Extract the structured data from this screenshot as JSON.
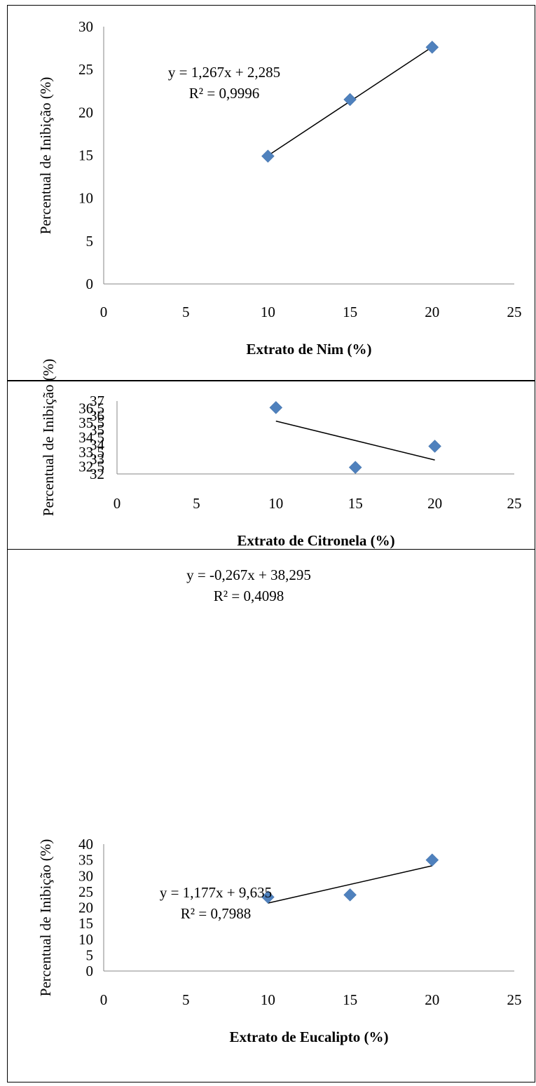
{
  "chart_data": [
    {
      "type": "scatter",
      "xlabel": "Extrato de Nim (%)",
      "ylabel": "Percentual de Inibição (%)",
      "xlim": [
        0,
        25
      ],
      "ylim": [
        0,
        30
      ],
      "xticks": [
        "0",
        "5",
        "10",
        "15",
        "20",
        "25"
      ],
      "yticks": [
        "0",
        "5",
        "10",
        "15",
        "20",
        "25",
        "30"
      ],
      "ytick_values": [
        0,
        5,
        10,
        15,
        20,
        25,
        30
      ],
      "points": [
        {
          "x": 10,
          "y": 14.9
        },
        {
          "x": 15,
          "y": 21.5
        },
        {
          "x": 20,
          "y": 27.6
        }
      ],
      "trendline": {
        "slope": 1.267,
        "intercept": 2.285,
        "x_range": [
          10,
          20
        ]
      },
      "equation": "y = 1,267x + 2,285",
      "r_squared": "R² = 0,9996",
      "marker_color": "#4f81bd",
      "grid": false,
      "legend": "none"
    },
    {
      "type": "scatter",
      "xlabel": "Extrato de Citronela (%)",
      "ylabel": "Percentual de Inibição (%)",
      "xlim": [
        0,
        25
      ],
      "ylim": [
        32,
        37
      ],
      "xticks": [
        "0",
        "5",
        "10",
        "15",
        "20",
        "25"
      ],
      "yticks": [
        "32",
        "32,5",
        "33",
        "33,5",
        "34",
        "34,5",
        "35",
        "35,5",
        "36",
        "36,5",
        "37"
      ],
      "ytick_values": [
        32,
        32.5,
        33,
        33.5,
        34,
        34.5,
        35,
        35.5,
        36,
        36.5,
        37
      ],
      "points": [
        {
          "x": 10,
          "y": 36.55
        },
        {
          "x": 15,
          "y": 32.45
        },
        {
          "x": 20,
          "y": 33.9
        }
      ],
      "trendline": {
        "slope": -0.267,
        "intercept": 38.295,
        "x_range": [
          10,
          20
        ]
      },
      "equation": "y = -0,267x + 38,295",
      "r_squared": "R² = 0,4098",
      "marker_color": "#4f81bd",
      "grid": false,
      "legend": "none"
    },
    {
      "type": "scatter",
      "xlabel": "Extrato de Eucalipto (%)",
      "ylabel": "Percentual de Inibição (%)",
      "xlim": [
        0,
        25
      ],
      "ylim": [
        0,
        40
      ],
      "xticks": [
        "0",
        "5",
        "10",
        "15",
        "20",
        "25"
      ],
      "yticks": [
        "0",
        "5",
        "10",
        "15",
        "20",
        "25",
        "30",
        "35",
        "40"
      ],
      "ytick_values": [
        0,
        5,
        10,
        15,
        20,
        25,
        30,
        35,
        40
      ],
      "points": [
        {
          "x": 10,
          "y": 23.3
        },
        {
          "x": 15,
          "y": 24.0
        },
        {
          "x": 20,
          "y": 35.0
        }
      ],
      "trendline": {
        "slope": 1.177,
        "intercept": 9.635,
        "x_range": [
          10,
          20
        ]
      },
      "equation": "y = 1,177x + 9,635",
      "r_squared": "R² = 0,7988",
      "marker_color": "#4f81bd",
      "grid": false,
      "legend": "none"
    }
  ]
}
